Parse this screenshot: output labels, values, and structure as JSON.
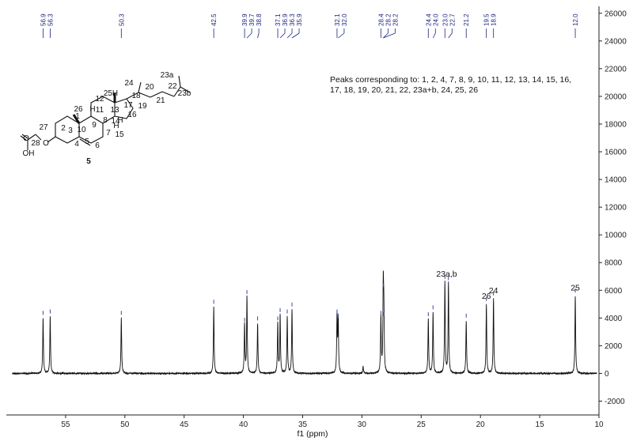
{
  "chart_data": {
    "type": "line",
    "xlabel": "f1 (ppm)",
    "xlim": [
      60,
      10
    ],
    "x_reversed": true,
    "ylim": [
      -3000,
      26500
    ],
    "x_ticks": [
      55,
      50,
      45,
      40,
      35,
      30,
      25,
      20,
      15,
      10
    ],
    "y_ticks": [
      -2000,
      0,
      2000,
      4000,
      6000,
      8000,
      10000,
      12000,
      14000,
      16000,
      18000,
      20000,
      22000,
      24000,
      26000
    ],
    "peak_labels": [
      "56.9",
      "56.3",
      "50.3",
      "42.5",
      "39.9",
      "39.7",
      "38.8",
      "37.1",
      "36.9",
      "36.3",
      "35.9",
      "32.1",
      "32.0",
      "28.4",
      "28.2",
      "28.2",
      "24.4",
      "24.0",
      "23.0",
      "22.7",
      "21.2",
      "19.5",
      "18.9",
      "12.0"
    ],
    "peaks": [
      {
        "x": 56.9,
        "y": 4000
      },
      {
        "x": 56.3,
        "y": 4100
      },
      {
        "x": 50.3,
        "y": 4000
      },
      {
        "x": 42.5,
        "y": 4800
      },
      {
        "x": 39.9,
        "y": 3500
      },
      {
        "x": 39.7,
        "y": 5500
      },
      {
        "x": 38.8,
        "y": 3600
      },
      {
        "x": 37.1,
        "y": 3600
      },
      {
        "x": 36.9,
        "y": 4200
      },
      {
        "x": 36.3,
        "y": 4100
      },
      {
        "x": 35.9,
        "y": 4600
      },
      {
        "x": 32.1,
        "y": 4100
      },
      {
        "x": 32.0,
        "y": 3800
      },
      {
        "x": 28.4,
        "y": 4000
      },
      {
        "x": 28.2,
        "y": 6000
      },
      {
        "x": 28.15,
        "y": 3900
      },
      {
        "x": 24.4,
        "y": 3900
      },
      {
        "x": 24.0,
        "y": 4400
      },
      {
        "x": 23.0,
        "y": 6600
      },
      {
        "x": 22.7,
        "y": 6500
      },
      {
        "x": 21.2,
        "y": 3800
      },
      {
        "x": 19.5,
        "y": 5000
      },
      {
        "x": 18.9,
        "y": 5400
      },
      {
        "x": 12.0,
        "y": 5600
      },
      {
        "x": 29.9,
        "y": 500
      }
    ],
    "peak_annotations": [
      {
        "x": 22.85,
        "text": "23a,b"
      },
      {
        "x": 19.5,
        "text": "26"
      },
      {
        "x": 18.9,
        "text": "24"
      },
      {
        "x": 12.0,
        "text": "25"
      }
    ],
    "note": "Peaks corresponding to: 1, 2, 4, 7, 8, 9, 10, 11, 12, 13, 14, 15, 16, 17, 18, 19, 20, 21, 22, 23a+b, 24, 25, 26",
    "compound_label": "5",
    "structure_atom_labels": [
      "26",
      "H",
      "1",
      "2",
      "3",
      "4",
      "5",
      "6",
      "7",
      "8",
      "9",
      "10",
      "11",
      "12",
      "13",
      "14",
      "15",
      "16",
      "17",
      "18",
      "19",
      "20",
      "21",
      "22",
      "23a",
      "23b",
      "24",
      "25H",
      "H",
      "H",
      "27",
      "28",
      "O",
      "O",
      "OH"
    ]
  },
  "colors": {
    "spectrum": "#111111",
    "peak_label": "#1a237e",
    "axis": "#222222"
  }
}
